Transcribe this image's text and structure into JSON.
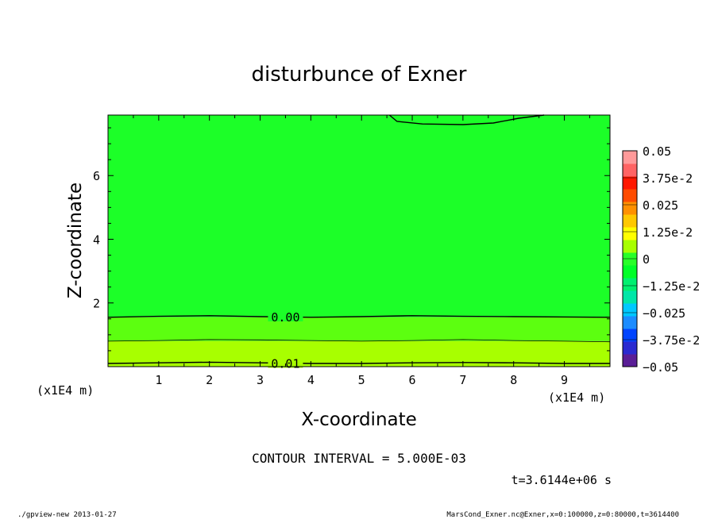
{
  "chart_data": {
    "type": "heatmap",
    "title": "disturbunce of Exner",
    "xlabel": "X-coordinate",
    "ylabel": "Z-coordinate",
    "x_unit": "(x1E4 m)",
    "y_unit": "(x1E4 m)",
    "xlim": [
      0,
      9.9
    ],
    "ylim": [
      0,
      7.9
    ],
    "x_ticks": [
      1,
      2,
      3,
      4,
      5,
      6,
      7,
      8,
      9
    ],
    "y_ticks": [
      2,
      4,
      6
    ],
    "colorbar": {
      "levels": [
        -0.05,
        -0.0375,
        -0.025,
        -0.0125,
        0,
        0.0125,
        0.025,
        0.0375,
        0.05
      ],
      "tick_labels": [
        "0.05",
        "3.75e-2",
        "0.025",
        "1.25e-2",
        "0",
        "−1.25e-2",
        "−0.025",
        "−3.75e-2",
        "−0.05"
      ],
      "colors": [
        "#5a1e96",
        "#2a2ad0",
        "#0044ff",
        "#1c8cff",
        "#00c8ff",
        "#00e6a8",
        "#00f070",
        "#00ff28",
        "#28ff28",
        "#a8ff00",
        "#ffff00",
        "#ffc800",
        "#ff9000",
        "#ff4c00",
        "#ff1800",
        "#ff6464",
        "#ff9a9a"
      ]
    },
    "contours": [
      {
        "level": "0.00",
        "labeled": true,
        "points": [
          [
            0,
            1.55
          ],
          [
            1,
            1.58
          ],
          [
            2,
            1.6
          ],
          [
            3,
            1.57
          ],
          [
            4,
            1.55
          ],
          [
            5,
            1.57
          ],
          [
            6,
            1.6
          ],
          [
            7,
            1.58
          ],
          [
            8,
            1.57
          ],
          [
            9,
            1.56
          ],
          [
            9.9,
            1.55
          ]
        ],
        "label_x": 3.5
      },
      {
        "level": "0.005",
        "labeled": false,
        "points": [
          [
            0,
            0.8
          ],
          [
            1,
            0.82
          ],
          [
            2,
            0.85
          ],
          [
            3,
            0.84
          ],
          [
            4,
            0.82
          ],
          [
            5,
            0.8
          ],
          [
            6,
            0.82
          ],
          [
            7,
            0.85
          ],
          [
            8,
            0.82
          ],
          [
            9,
            0.8
          ],
          [
            9.9,
            0.78
          ]
        ],
        "label_x": null
      },
      {
        "level": "0.01",
        "labeled": true,
        "points": [
          [
            0,
            0.1
          ],
          [
            1,
            0.12
          ],
          [
            2,
            0.14
          ],
          [
            3,
            0.12
          ],
          [
            4,
            0.1
          ],
          [
            5,
            0.1
          ],
          [
            6,
            0.12
          ],
          [
            7,
            0.13
          ],
          [
            8,
            0.12
          ],
          [
            9,
            0.1
          ],
          [
            9.9,
            0.1
          ]
        ],
        "label_x": 3.5
      },
      {
        "level": "top",
        "labeled": false,
        "points": [
          [
            5.55,
            7.9
          ],
          [
            5.7,
            7.7
          ],
          [
            6.2,
            7.62
          ],
          [
            7.0,
            7.6
          ],
          [
            7.6,
            7.65
          ],
          [
            8.1,
            7.8
          ],
          [
            8.6,
            7.9
          ]
        ],
        "label_x": null
      }
    ],
    "fill_bands": [
      {
        "y_from": 0,
        "y_to": 0.8,
        "color": "#a8ff00"
      },
      {
        "y_from": 0.8,
        "y_to": 1.55,
        "color": "#5cff10"
      },
      {
        "y_from": 1.55,
        "y_to": 7.9,
        "color": "#1cff28"
      }
    ]
  },
  "contour_interval": "CONTOUR INTERVAL = 5.000E-03",
  "time": "t=3.6144e+06 s",
  "footer_left": "./gpview-new  2013-01-27",
  "footer_right": "MarsCond_Exner.nc@Exner,x=0:100000,z=0:80000,t=3614400"
}
